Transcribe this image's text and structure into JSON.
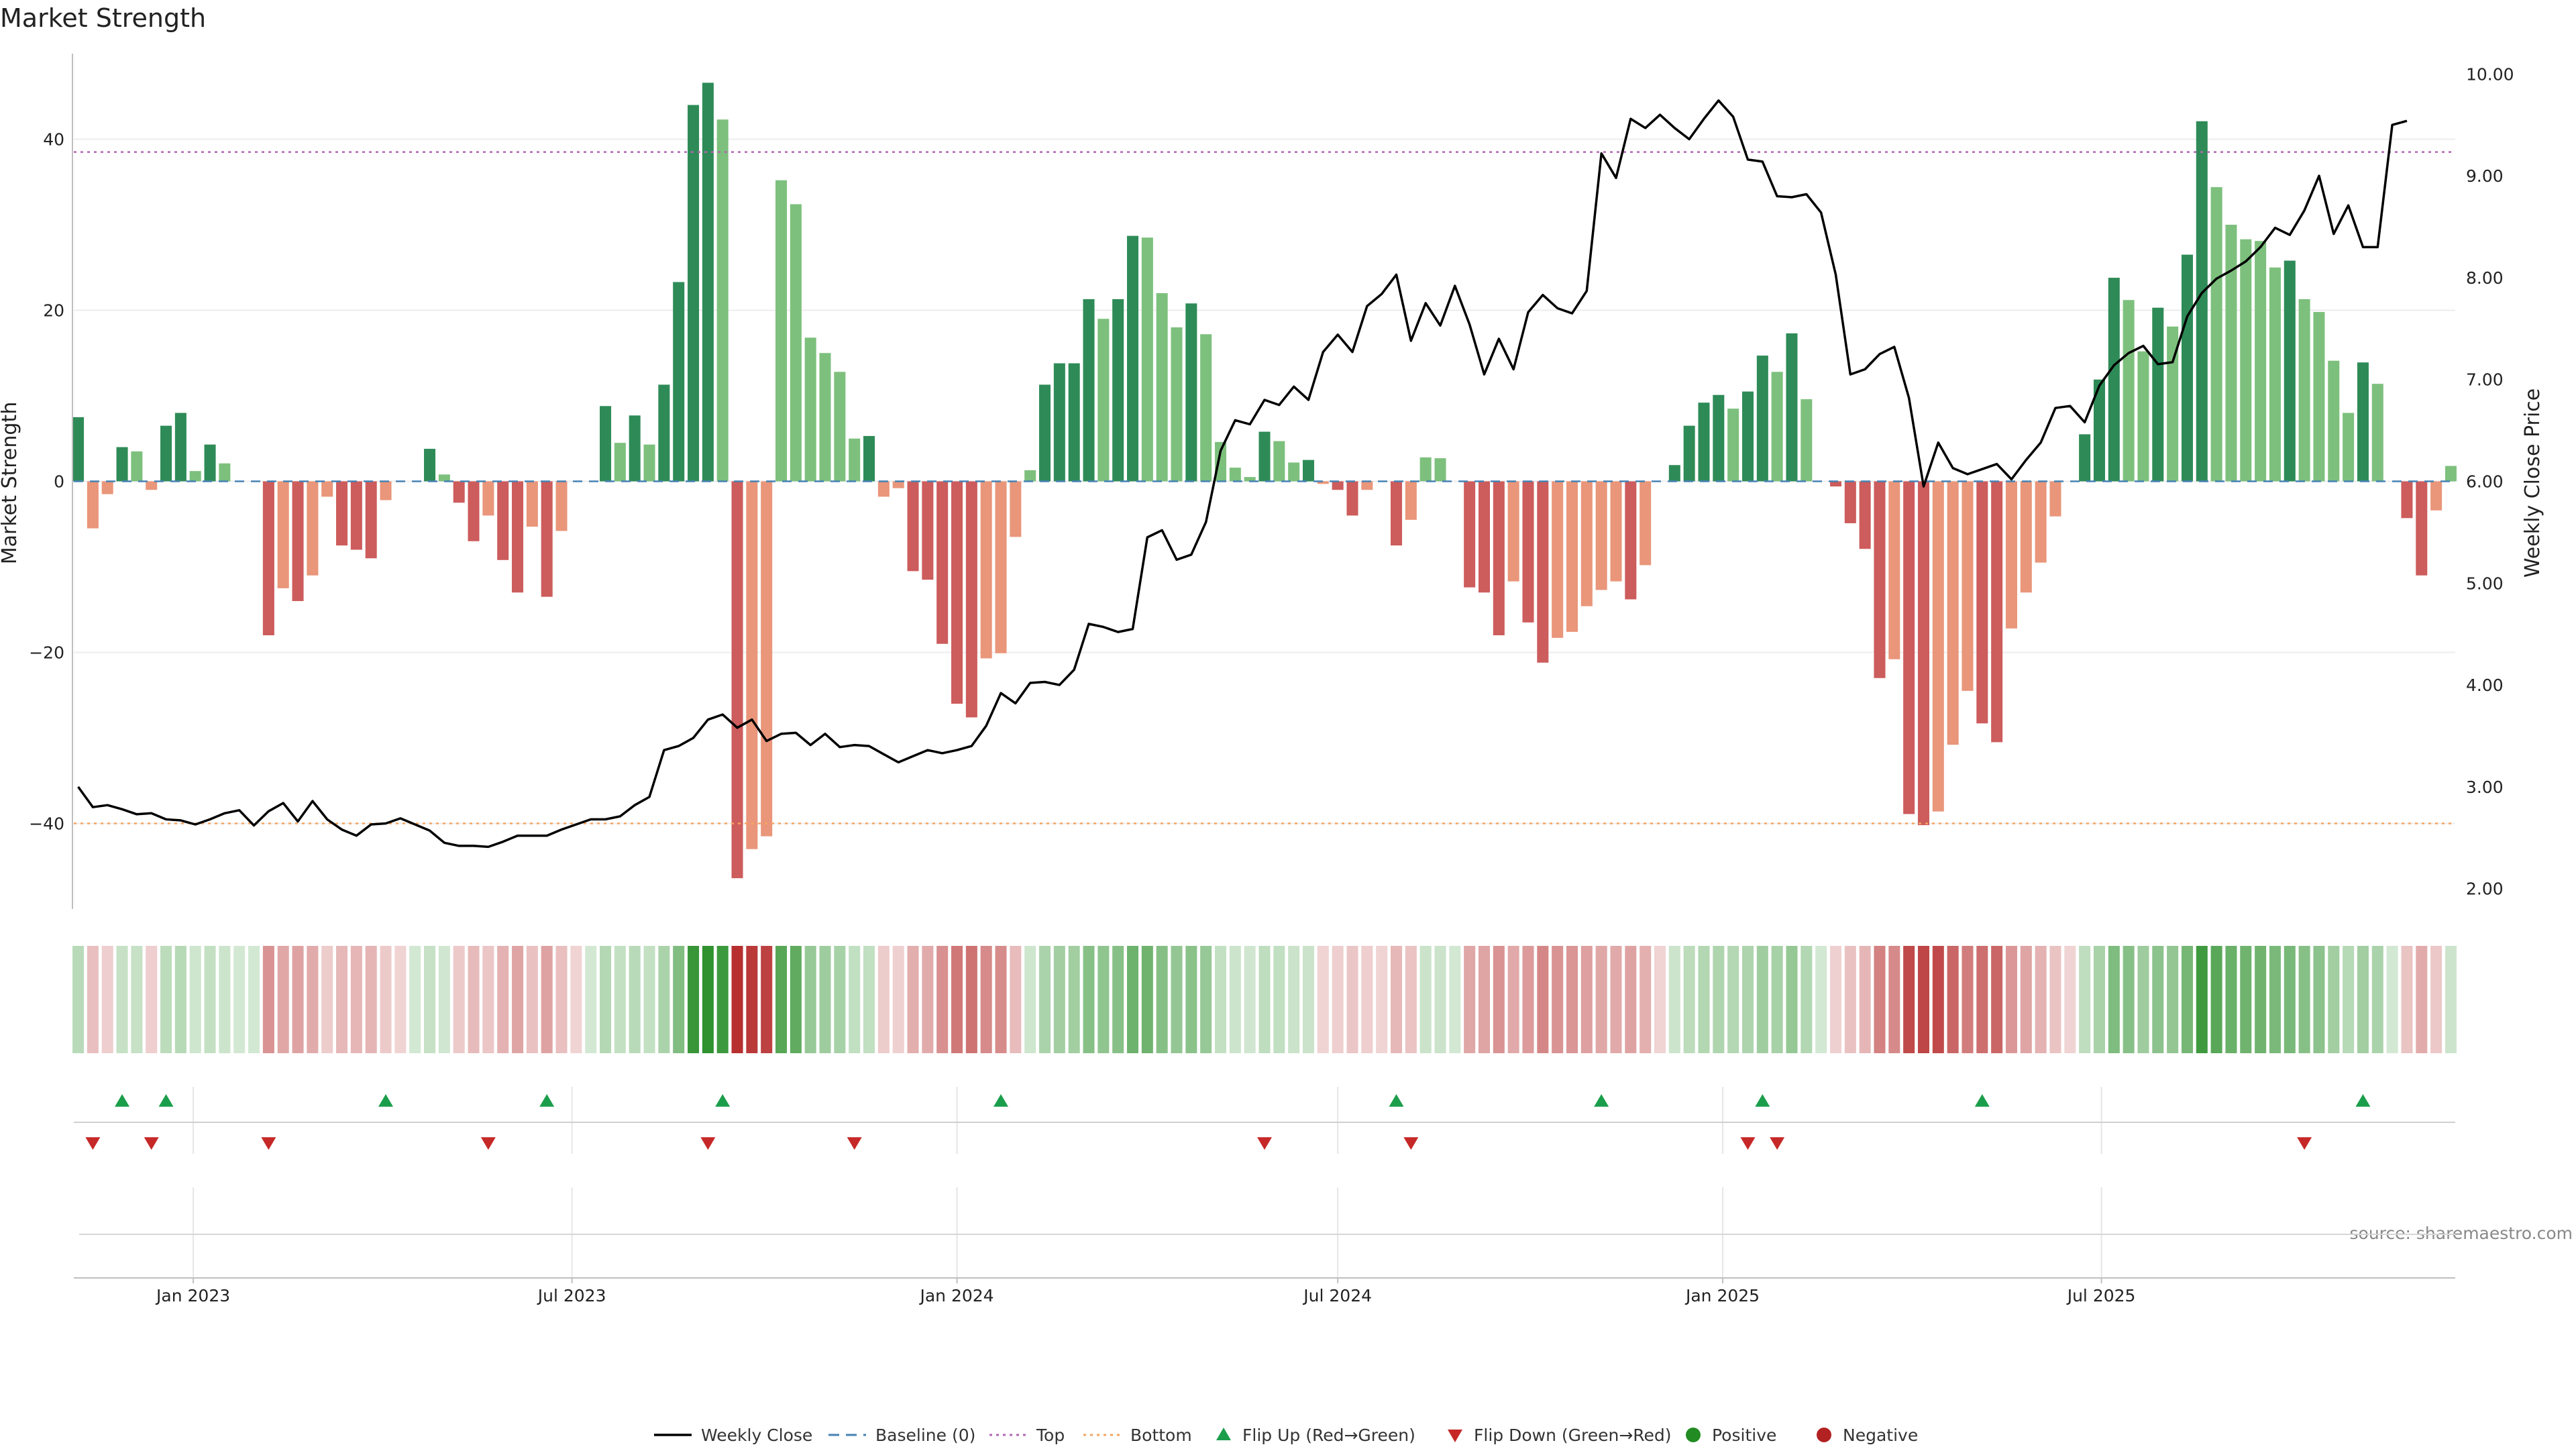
{
  "chart_data": {
    "type": "bar",
    "title": "Market Strength",
    "ylabel": "Market Strength",
    "y2label": "Weekly Close Price",
    "source": "source: sharemaestro.com",
    "start_date": "2022-11-07",
    "ylim": [
      -50,
      50
    ],
    "y_ticks": [
      40,
      20,
      0,
      -20,
      -40
    ],
    "y_tick_labels": [
      "40",
      "20",
      "0",
      "−20",
      "−40"
    ],
    "y2lim": [
      1.8,
      10.2
    ],
    "y2_ticks": [
      2,
      3,
      4,
      5,
      6,
      7,
      8,
      9,
      10
    ],
    "y2_tick_labels": [
      "2.00",
      "3.00",
      "4.00",
      "5.00",
      "6.00",
      "7.00",
      "8.00",
      "9.00",
      "10.00"
    ],
    "x_ticks": [
      {
        "label": "Jan 2023",
        "date": "2023-01-01"
      },
      {
        "label": "Jul 2023",
        "date": "2023-07-01"
      },
      {
        "label": "Jan 2024",
        "date": "2024-01-01"
      },
      {
        "label": "Jul 2024",
        "date": "2024-07-01"
      },
      {
        "label": "Jan 2025",
        "date": "2025-01-01"
      },
      {
        "label": "Jul 2025",
        "date": "2025-07-01"
      }
    ],
    "top_level": 38.5,
    "bottom_level": -40,
    "strength": [
      7.5,
      -5.5,
      -1.5,
      4,
      3.5,
      -1,
      6.5,
      8,
      1.2,
      4.3,
      2.1,
      0,
      0,
      -18,
      -12.5,
      -14,
      -11,
      -1.8,
      -7.5,
      -8,
      -9,
      -2.2,
      0,
      0,
      3.8,
      0.8,
      -2.5,
      -7,
      -4,
      -9.2,
      -13,
      -5.3,
      -13.5,
      -5.8,
      0,
      0,
      8.8,
      4.5,
      7.7,
      4.3,
      11.3,
      23.3,
      44,
      46.6,
      42.3,
      -46.4,
      -43,
      -41.5,
      35.2,
      32.4,
      16.8,
      15,
      12.8,
      5,
      5.3,
      -1.8,
      -0.8,
      -10.5,
      -11.5,
      -19,
      -26,
      -27.6,
      -20.7,
      -20.1,
      -6.5,
      1.3,
      11.3,
      13.8,
      13.8,
      21.3,
      19,
      21.3,
      28.7,
      28.5,
      22,
      18,
      20.8,
      17.2,
      4.6,
      1.6,
      0.5,
      5.8,
      4.7,
      2.2,
      2.5,
      -0.3,
      -1,
      -4,
      -1,
      0,
      -7.5,
      -4.5,
      2.8,
      2.7,
      0,
      -12.4,
      -13,
      -18,
      -11.7,
      -16.5,
      -21.2,
      -18.3,
      -17.6,
      -14.6,
      -12.7,
      -11.7,
      -13.8,
      -9.8,
      0,
      1.9,
      6.5,
      9.2,
      10.1,
      8.5,
      10.5,
      14.7,
      12.8,
      17.3,
      9.6,
      0,
      -0.6,
      -4.9,
      -7.9,
      -23,
      -20.8,
      -38.9,
      -40.2,
      -38.6,
      -30.8,
      -24.5,
      -28.3,
      -30.5,
      -17.2,
      -13,
      -9.5,
      -4.1,
      0,
      5.5,
      11.9,
      23.8,
      21.2,
      15.2,
      20.3,
      18.1,
      26.5,
      42.1,
      34.4,
      30,
      28.3,
      28.1,
      25,
      25.8,
      21.3,
      19.8,
      14.1,
      8,
      13.9,
      11.4,
      0,
      -4.3,
      -11,
      -3.4,
      1.8
    ],
    "close": [
      3.0,
      2.8,
      2.82,
      2.78,
      2.73,
      2.74,
      2.68,
      2.67,
      2.63,
      2.68,
      2.74,
      2.77,
      2.62,
      2.76,
      2.84,
      2.66,
      2.86,
      2.68,
      2.58,
      2.52,
      2.63,
      2.64,
      2.69,
      2.63,
      2.57,
      2.45,
      2.42,
      2.42,
      2.41,
      2.46,
      2.52,
      2.52,
      2.52,
      2.58,
      2.63,
      2.68,
      2.68,
      2.71,
      2.82,
      2.9,
      3.36,
      3.4,
      3.48,
      3.66,
      3.71,
      3.58,
      3.66,
      3.45,
      3.52,
      3.53,
      3.41,
      3.52,
      3.39,
      3.41,
      3.4,
      3.32,
      3.24,
      3.3,
      3.36,
      3.33,
      3.36,
      3.4,
      3.6,
      3.92,
      3.82,
      4.02,
      4.03,
      4.0,
      4.15,
      4.6,
      4.57,
      4.52,
      4.55,
      5.45,
      5.52,
      5.23,
      5.28,
      5.6,
      6.3,
      6.6,
      6.56,
      6.8,
      6.75,
      6.93,
      6.8,
      7.27,
      7.44,
      7.27,
      7.72,
      7.84,
      8.03,
      7.38,
      7.75,
      7.53,
      7.92,
      7.54,
      7.05,
      7.4,
      7.1,
      7.66,
      7.83,
      7.7,
      7.65,
      7.87,
      9.22,
      8.98,
      9.56,
      9.47,
      9.6,
      9.47,
      9.36,
      9.56,
      9.74,
      9.58,
      9.16,
      9.14,
      8.8,
      8.79,
      8.82,
      8.64,
      8.03,
      7.05,
      7.1,
      7.25,
      7.32,
      6.82,
      5.95,
      6.38,
      6.13,
      6.07,
      6.12,
      6.17,
      6.02,
      6.21,
      6.38,
      6.72,
      6.74,
      6.58,
      6.94,
      7.14,
      7.26,
      7.33,
      7.15,
      7.17,
      7.62,
      7.85,
      7.99,
      8.07,
      8.16,
      8.3,
      8.49,
      8.42,
      8.66,
      9.0,
      8.43,
      8.71,
      8.3,
      8.3,
      9.5,
      9.54
    ],
    "flips_up": [
      "2022-11-28",
      "2022-12-19",
      "2023-04-03",
      "2023-06-19",
      "2023-09-11",
      "2024-01-22",
      "2024-07-29",
      "2024-11-04",
      "2025-01-20",
      "2025-05-05",
      "2025-11-03"
    ],
    "flips_down": [
      "2022-11-14",
      "2022-12-12",
      "2023-02-06",
      "2023-05-22",
      "2023-09-04",
      "2023-11-13",
      "2024-05-27",
      "2024-08-05",
      "2025-01-13",
      "2025-01-27",
      "2025-10-06"
    ],
    "palette": {
      "strong_green": "#2e8b57",
      "weak_green": "#7dc07d",
      "strong_red": "#cd5c5c",
      "weak_red": "#e9967a",
      "line": "#000000",
      "top_line": "#b266b2",
      "bottom_line": "#f4a460",
      "baseline": "#4682b4",
      "flip_up": "#1b9e4b",
      "flip_down": "#c62828",
      "positive": "#228b22",
      "negative": "#b22222"
    },
    "legend": [
      {
        "label": "Weekly Close",
        "kind": "line",
        "color": "#000000"
      },
      {
        "label": "Baseline (0)",
        "kind": "dash",
        "color": "#4682b4"
      },
      {
        "label": "Top",
        "kind": "dot",
        "color": "#b266b2"
      },
      {
        "label": "Bottom",
        "kind": "dot",
        "color": "#f4a460"
      },
      {
        "label": "Flip Up (Red→Green)",
        "kind": "tri-up",
        "color": "#1b9e4b"
      },
      {
        "label": "Flip Down (Green→Red)",
        "kind": "tri-down",
        "color": "#c62828"
      },
      {
        "label": "Positive",
        "kind": "circle",
        "color": "#228b22"
      },
      {
        "label": "Negative",
        "kind": "circle",
        "color": "#b22222"
      }
    ],
    "legend_position": "bottom-center",
    "grid": true
  }
}
